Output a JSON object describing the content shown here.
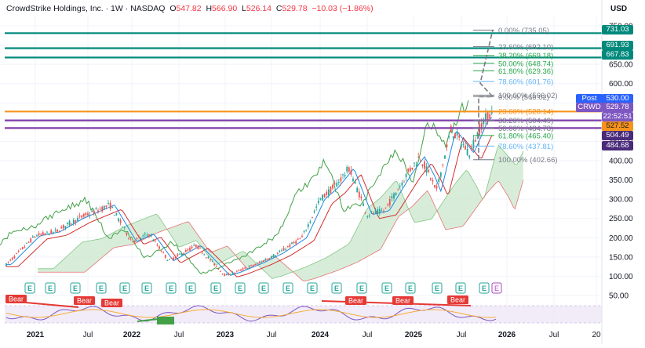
{
  "header": {
    "title": "CrowdStrike Holdings, Inc. · 1W · NASDAQ",
    "o_label": "O",
    "o": "547.82",
    "h_label": "H",
    "h": "566.90",
    "l_label": "L",
    "l": "526.14",
    "c_label": "C",
    "c": "529.78",
    "chg": "−10.03 (−1.86%)"
  },
  "currency": "USD",
  "colors": {
    "up": "#26a69a",
    "down": "#ef5350",
    "teal_level": "#00897b",
    "orange_level": "#f7931a",
    "purple_level": "#7e3fa8",
    "fib_green": "#26a64a",
    "fib_blue": "#64b5f6",
    "cloud": "#c8e6c9",
    "cloud_red": "#ffcdd2",
    "kijun": "#d32f2f",
    "tenkan": "#1e88e5",
    "chikou": "#43a047",
    "rsi_band": "#ede7f6",
    "bear": "#e53935",
    "bull": "#43a047"
  },
  "price_labels": {
    "post_tag": "Post",
    "post_val": "530.00",
    "ticker_tag": "CRWD",
    "ticker_val": "529.78",
    "countdown": "22:52:51",
    "orange_val": "527.52",
    "purple1_val": "504.49",
    "purple2_val": "484.68",
    "teal1_val": "731.03",
    "teal2_val": "691.93",
    "teal3_val": "667.83"
  },
  "fib_upper": [
    {
      "text": "0.00% (735.05)",
      "price": 735.05
    },
    {
      "text": "23.60% (692.10)",
      "price": 692.1
    },
    {
      "text": "38.20% (669.18)",
      "price": 669.18
    },
    {
      "text": "50.00% (648.74)",
      "price": 648.74
    },
    {
      "text": "61.80% (629.36)",
      "price": 629.36
    },
    {
      "text": "78.60% (601.76)",
      "price": 601.76
    },
    {
      "text": "100.00% (566.02)",
      "price": 566.02
    }
  ],
  "fib_lower": [
    {
      "text": "0.00% (566.02)",
      "price": 566.02
    },
    {
      "text": "23.60% (528.14)",
      "price": 528.14
    },
    {
      "text": "38.20% (504.49)",
      "price": 504.49
    },
    {
      "text": "50.00% (484.78)",
      "price": 484.78
    },
    {
      "text": "61.80% (465.40)",
      "price": 465.4
    },
    {
      "text": "78.60% (437.81)",
      "price": 437.81
    },
    {
      "text": "100.00% (402.66)",
      "price": 402.66
    }
  ],
  "events": {
    "earnings_label": "E",
    "bear_label": "Bear"
  },
  "chart_data": {
    "type": "candlestick",
    "title": "CrowdStrike Holdings, Inc. · 1W · NASDAQ",
    "xlabel": "",
    "ylabel": "USD",
    "ylim": [
      50,
      750
    ],
    "yticks": [
      50,
      100,
      150,
      200,
      250,
      300,
      350,
      400,
      450,
      500,
      550,
      600,
      650,
      700,
      750
    ],
    "ytick_labels": [
      "50.00",
      "100.00",
      "150.00",
      "200.00",
      "250.00",
      "300.00",
      "350.00",
      "400.00",
      "450.00",
      "500.00",
      "550.00",
      "600.00",
      "650.00",
      "700.00",
      "750.00"
    ],
    "xticks": [
      "2021",
      "Jul",
      "2022",
      "Jul",
      "2023",
      "Jul",
      "2024",
      "Jul",
      "2025",
      "Jul",
      "2026",
      "Jul",
      "20"
    ],
    "series": [
      {
        "name": "Close",
        "x": [
          "2020-10",
          "2021-01",
          "2021-04",
          "2021-07",
          "2021-11",
          "2022-01",
          "2022-04",
          "2022-06",
          "2022-09",
          "2022-12",
          "2023-01",
          "2023-04",
          "2023-07",
          "2023-10",
          "2024-01",
          "2024-03",
          "2024-05",
          "2024-07",
          "2024-09",
          "2024-12",
          "2025-01",
          "2025-03",
          "2025-04",
          "2025-06",
          "2025-08",
          "2025-10",
          "2025-11"
        ],
        "values": [
          130,
          205,
          215,
          250,
          280,
          190,
          210,
          145,
          180,
          105,
          110,
          135,
          160,
          200,
          300,
          330,
          380,
          260,
          270,
          370,
          410,
          360,
          370,
          480,
          420,
          510,
          529.78
        ]
      }
    ],
    "horizontal_levels": [
      731.03,
      691.93,
      667.83,
      527.52,
      504.49,
      484.68
    ],
    "grid": true,
    "legend": "none"
  }
}
